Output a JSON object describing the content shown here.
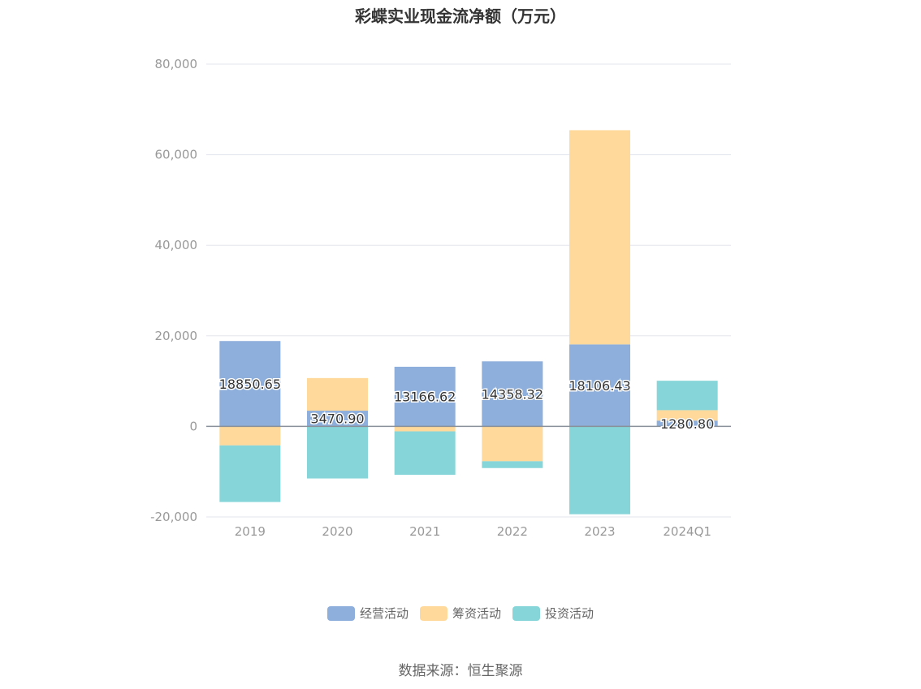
{
  "title": "彩蝶实业现金流净额（万元）",
  "source": "数据来源：恒生聚源",
  "chart_data": {
    "type": "bar",
    "stacked": true,
    "title": "彩蝶实业现金流净额（万元）",
    "categories": [
      "2019",
      "2020",
      "2021",
      "2022",
      "2023",
      "2024Q1"
    ],
    "ylim": [
      -20000,
      80000
    ],
    "yticks": [
      -20000,
      0,
      20000,
      40000,
      60000,
      80000
    ],
    "ytick_labels": [
      "-20,000",
      "0",
      "20,000",
      "40,000",
      "60,000",
      "80,000"
    ],
    "grid": true,
    "legend_position": "bottom",
    "series": [
      {
        "name": "经营活动",
        "color": "#8eaedb",
        "values": [
          18850.65,
          3470.9,
          13166.62,
          14358.32,
          18106.43,
          1280.8
        ],
        "labels": [
          "18850.65",
          "3470.90",
          "13166.62",
          "14358.32",
          "18106.43",
          "1280.80"
        ]
      },
      {
        "name": "筹资活动",
        "color": "#fed99b",
        "values": [
          -4200,
          7200,
          -1100,
          -7700,
          47300,
          2300
        ]
      },
      {
        "name": "投资活动",
        "color": "#86d6d9",
        "values": [
          -12500,
          -11500,
          -9600,
          -1500,
          -19400,
          6500
        ]
      }
    ]
  }
}
